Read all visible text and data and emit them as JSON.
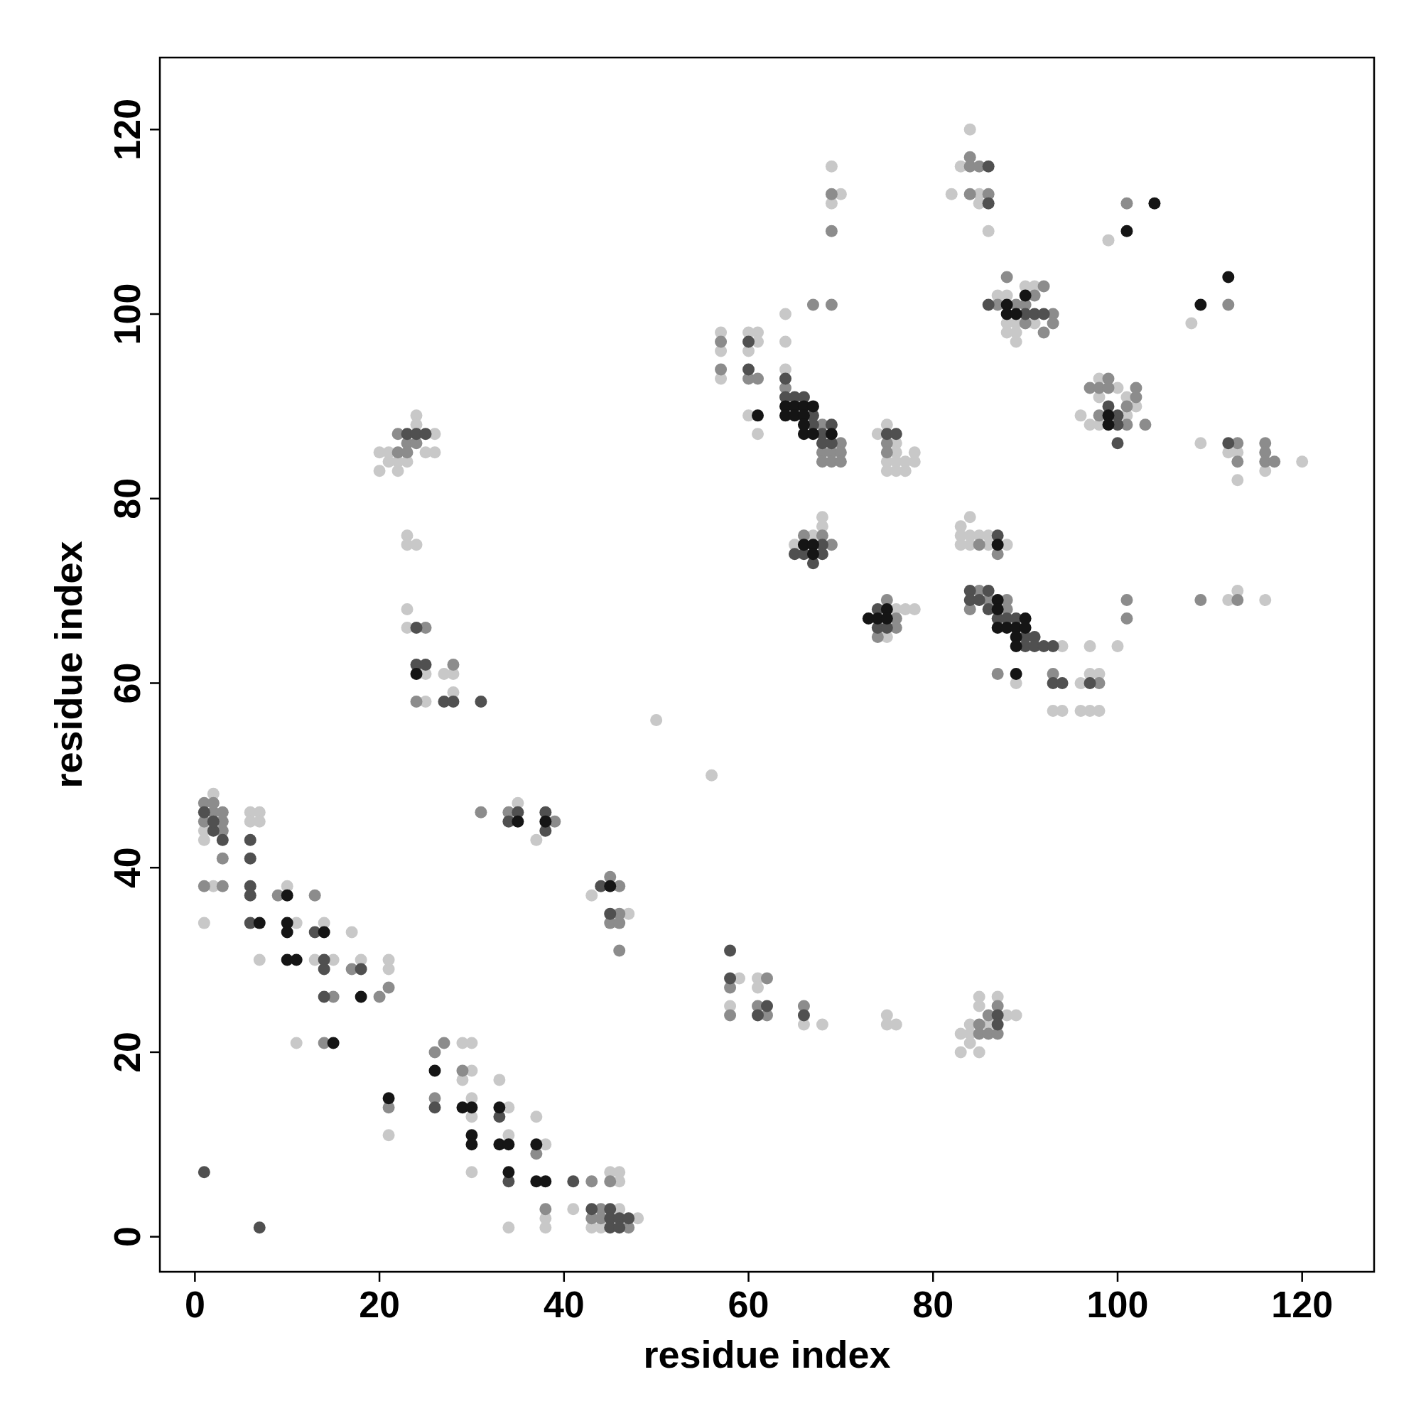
{
  "chart_data": {
    "type": "scatter",
    "xlabel": "residue index",
    "ylabel": "residue index",
    "xlim": [
      -3.8,
      127.8
    ],
    "ylim": [
      -3.8,
      127.8
    ],
    "xticks": [
      0,
      20,
      40,
      60,
      80,
      100,
      120
    ],
    "yticks": [
      0,
      20,
      40,
      60,
      80,
      100,
      120
    ],
    "marker": "circle",
    "grid": false,
    "series": [
      {
        "color": "#c8c8c8",
        "x": [
          1,
          1,
          1,
          2,
          2,
          6,
          6,
          7,
          7,
          7,
          10,
          11,
          11,
          14,
          13,
          15,
          17,
          18,
          21,
          21,
          21,
          29,
          30,
          29,
          30,
          30,
          30,
          30,
          33,
          34,
          34,
          34,
          37,
          38,
          38,
          38,
          41,
          43,
          44,
          45,
          46,
          46,
          46,
          48,
          43,
          47,
          35,
          37,
          50,
          56,
          20,
          20,
          21,
          21,
          22,
          22,
          23,
          24,
          24,
          25,
          26,
          26,
          23,
          23,
          24,
          23,
          23,
          25,
          25,
          27,
          28,
          28,
          58,
          59,
          61,
          61,
          66,
          68,
          75,
          75,
          76,
          83,
          83,
          84,
          84,
          84,
          85,
          85,
          85,
          86,
          87,
          88,
          89,
          57,
          57,
          57,
          60,
          60,
          61,
          61,
          60,
          61,
          64,
          64,
          64,
          69,
          69,
          70,
          65,
          67,
          68,
          68,
          75,
          76,
          77,
          78,
          74,
          75,
          75,
          75,
          76,
          76,
          76,
          76,
          77,
          77,
          78,
          78,
          82,
          83,
          84,
          85,
          85,
          86,
          83,
          83,
          83,
          84,
          84,
          84,
          85,
          86,
          86,
          88,
          94,
          89,
          93,
          94,
          96,
          96,
          97,
          97,
          97,
          98,
          98,
          100,
          87,
          88,
          88,
          88,
          89,
          89,
          89,
          90,
          91,
          91,
          96,
          97,
          98,
          98,
          98,
          100,
          101,
          101,
          102,
          99,
          108,
          109,
          112,
          113,
          113,
          116,
          120,
          112,
          113,
          116
        ],
        "values": [
          34,
          43,
          44,
          38,
          48,
          46,
          45,
          46,
          45,
          30,
          38,
          34,
          21,
          34,
          30,
          30,
          33,
          30,
          29,
          30,
          11,
          21,
          21,
          17,
          18,
          15,
          13,
          7,
          17,
          14,
          11,
          1,
          13,
          10,
          2,
          1,
          3,
          1,
          1,
          7,
          7,
          6,
          3,
          2,
          37,
          35,
          47,
          43,
          56,
          50,
          85,
          83,
          85,
          84,
          84,
          83,
          84,
          89,
          88,
          85,
          87,
          85,
          76,
          75,
          75,
          68,
          66,
          61,
          58,
          61,
          61,
          59,
          25,
          28,
          28,
          27,
          23,
          23,
          24,
          23,
          23,
          22,
          20,
          23,
          22,
          21,
          26,
          25,
          20,
          23,
          26,
          24,
          24,
          98,
          96,
          93,
          98,
          96,
          98,
          97,
          89,
          87,
          100,
          97,
          94,
          112,
          116,
          113,
          75,
          76,
          78,
          77,
          65,
          68,
          68,
          68,
          87,
          88,
          84,
          83,
          86,
          85,
          84,
          83,
          84,
          83,
          85,
          84,
          113,
          116,
          120,
          113,
          112,
          109,
          77,
          76,
          75,
          78,
          76,
          75,
          76,
          76,
          75,
          75,
          64,
          60,
          57,
          57,
          60,
          57,
          64,
          61,
          57,
          61,
          57,
          64,
          102,
          102,
          99,
          98,
          99,
          98,
          97,
          103,
          103,
          99,
          89,
          88,
          93,
          91,
          88,
          92,
          91,
          89,
          90,
          108,
          99,
          86,
          85,
          85,
          82,
          83,
          84,
          69,
          70,
          69
        ]
      },
      {
        "color": "#8c8c8c",
        "x": [
          1,
          1,
          1,
          2,
          2,
          3,
          3,
          3,
          3,
          3,
          9,
          13,
          15,
          17,
          20,
          21,
          21,
          14,
          26,
          26,
          27,
          29,
          37,
          38,
          43,
          43,
          44,
          44,
          45,
          47,
          45,
          46,
          45,
          46,
          46,
          46,
          31,
          34,
          39,
          22,
          22,
          23,
          23,
          24,
          25,
          24,
          28,
          58,
          58,
          62,
          61,
          62,
          66,
          85,
          85,
          86,
          86,
          87,
          87,
          57,
          57,
          60,
          61,
          64,
          68,
          68,
          68,
          69,
          69,
          70,
          70,
          70,
          67,
          69,
          69,
          69,
          66,
          68,
          69,
          74,
          75,
          76,
          76,
          75,
          75,
          84,
          84,
          84,
          85,
          86,
          85,
          87,
          84,
          85,
          86,
          88,
          88,
          87,
          93,
          98,
          101,
          101,
          87,
          88,
          89,
          90,
          90,
          91,
          92,
          92,
          93,
          93,
          97,
          98,
          98,
          99,
          99,
          101,
          101,
          102,
          102,
          103,
          101,
          112,
          113,
          113,
          116,
          116,
          116,
          117,
          109,
          113
        ],
        "values": [
          38,
          45,
          47,
          46,
          47,
          38,
          41,
          44,
          45,
          46,
          37,
          37,
          26,
          29,
          26,
          27,
          14,
          21,
          20,
          15,
          21,
          18,
          9,
          3,
          6,
          2,
          3,
          2,
          6,
          1,
          39,
          38,
          34,
          35,
          34,
          31,
          46,
          46,
          45,
          87,
          85,
          86,
          85,
          86,
          66,
          58,
          62,
          27,
          24,
          28,
          25,
          24,
          25,
          23,
          22,
          24,
          22,
          25,
          22,
          97,
          94,
          93,
          93,
          92,
          88,
          85,
          84,
          85,
          84,
          86,
          85,
          84,
          101,
          101,
          109,
          113,
          76,
          76,
          75,
          65,
          69,
          67,
          66,
          86,
          85,
          117,
          116,
          113,
          116,
          113,
          75,
          74,
          68,
          70,
          69,
          69,
          68,
          61,
          61,
          60,
          69,
          67,
          101,
          104,
          101,
          101,
          99,
          102,
          103,
          98,
          100,
          99,
          92,
          92,
          89,
          93,
          92,
          90,
          88,
          92,
          91,
          88,
          112,
          101,
          86,
          84,
          86,
          85,
          84,
          84,
          69,
          69
        ]
      },
      {
        "color": "#505050",
        "x": [
          1,
          7,
          1,
          2,
          2,
          3,
          6,
          6,
          6,
          6,
          6,
          13,
          14,
          14,
          14,
          18,
          26,
          33,
          34,
          41,
          43,
          45,
          45,
          45,
          46,
          46,
          47,
          44,
          45,
          34,
          35,
          38,
          38,
          23,
          24,
          25,
          24,
          24,
          25,
          27,
          28,
          31,
          58,
          58,
          62,
          61,
          66,
          87,
          87,
          60,
          60,
          64,
          64,
          65,
          66,
          67,
          67,
          68,
          68,
          69,
          69,
          65,
          66,
          67,
          68,
          68,
          74,
          74,
          75,
          75,
          76,
          86,
          86,
          87,
          84,
          84,
          85,
          86,
          86,
          87,
          88,
          89,
          90,
          90,
          91,
          91,
          92,
          93,
          93,
          94,
          97,
          86,
          90,
          91,
          92,
          99,
          100,
          100,
          100,
          112
        ],
        "values": [
          7,
          1,
          46,
          44,
          45,
          43,
          43,
          41,
          38,
          37,
          34,
          33,
          30,
          29,
          26,
          29,
          14,
          13,
          6,
          6,
          3,
          3,
          2,
          1,
          2,
          1,
          2,
          38,
          35,
          45,
          46,
          46,
          44,
          87,
          87,
          87,
          66,
          62,
          62,
          58,
          58,
          58,
          31,
          28,
          25,
          24,
          24,
          24,
          23,
          97,
          94,
          93,
          91,
          91,
          91,
          89,
          88,
          87,
          86,
          88,
          86,
          74,
          74,
          73,
          75,
          74,
          68,
          66,
          66,
          87,
          87,
          116,
          112,
          76,
          70,
          69,
          69,
          70,
          68,
          67,
          67,
          67,
          65,
          64,
          65,
          64,
          64,
          64,
          60,
          60,
          60,
          101,
          100,
          100,
          100,
          90,
          89,
          88,
          86,
          86
        ]
      },
      {
        "color": "#151515",
        "x": [
          10,
          7,
          10,
          10,
          10,
          11,
          14,
          15,
          18,
          21,
          26,
          29,
          30,
          30,
          30,
          33,
          33,
          34,
          34,
          37,
          37,
          38,
          45,
          35,
          38,
          24,
          61,
          64,
          64,
          65,
          65,
          66,
          66,
          66,
          66,
          67,
          67,
          69,
          66,
          67,
          67,
          73,
          74,
          75,
          75,
          87,
          87,
          87,
          87,
          88,
          89,
          89,
          89,
          90,
          90,
          89,
          88,
          88,
          89,
          90,
          99,
          99,
          101,
          104,
          109,
          112
        ],
        "values": [
          37,
          34,
          34,
          33,
          30,
          30,
          33,
          21,
          26,
          15,
          18,
          14,
          14,
          11,
          10,
          14,
          10,
          10,
          7,
          10,
          6,
          6,
          38,
          45,
          45,
          61,
          89,
          90,
          89,
          90,
          89,
          90,
          89,
          88,
          87,
          90,
          87,
          87,
          75,
          75,
          74,
          67,
          67,
          68,
          67,
          75,
          69,
          68,
          66,
          66,
          66,
          65,
          64,
          67,
          66,
          61,
          101,
          100,
          100,
          102,
          89,
          88,
          109,
          112,
          101,
          104
        ]
      }
    ]
  }
}
